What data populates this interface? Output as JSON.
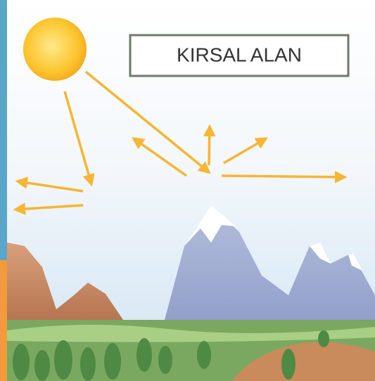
{
  "label": "KIRSAL ALAN"
}
